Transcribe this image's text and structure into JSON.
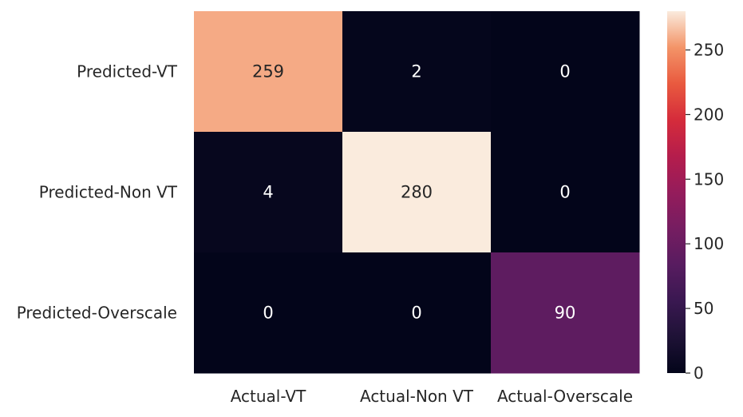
{
  "chart_data": {
    "type": "heatmap",
    "title": "",
    "xlabel": "",
    "ylabel": "",
    "x_categories": [
      "Actual-VT",
      "Actual-Non VT",
      "Actual-Overscale"
    ],
    "y_categories": [
      "Predicted-VT",
      "Predicted-Non VT",
      "Predicted-Overscale"
    ],
    "values": [
      [
        259,
        2,
        0
      ],
      [
        4,
        280,
        0
      ],
      [
        0,
        0,
        90
      ]
    ],
    "annotations": [
      [
        "259",
        "2",
        "0"
      ],
      [
        "4",
        "280",
        "0"
      ],
      [
        "0",
        "0",
        "90"
      ]
    ],
    "colorbar": {
      "min": 0,
      "max": 280,
      "ticks": [
        0,
        50,
        100,
        150,
        200,
        250
      ],
      "tick_labels": [
        "0",
        "50",
        "100",
        "150",
        "200",
        "250"
      ],
      "colormap": "rocket"
    },
    "legend": "colorbar-right",
    "grid": false
  }
}
